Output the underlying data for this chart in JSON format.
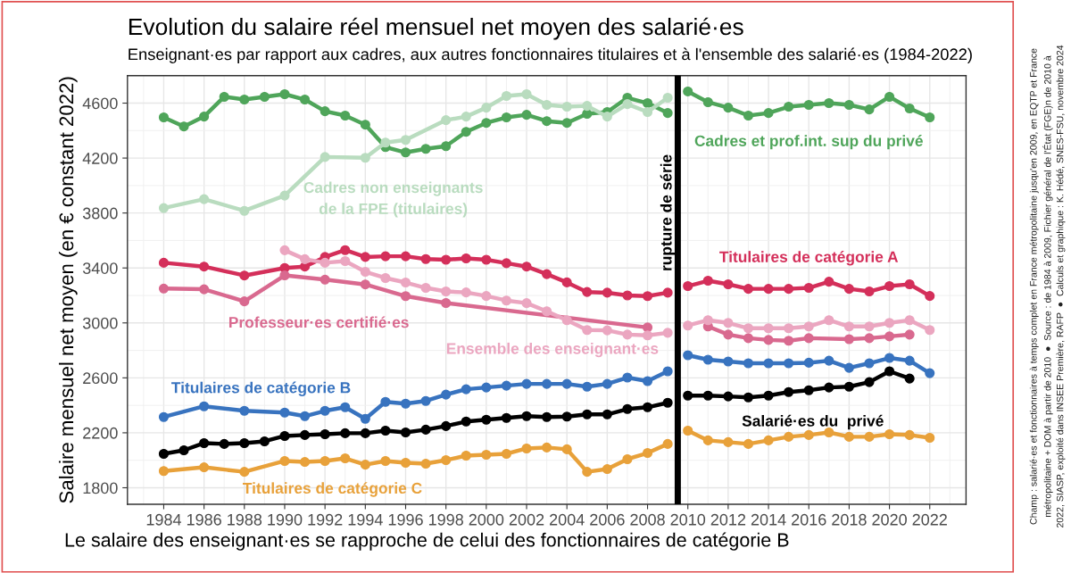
{
  "chart_data": {
    "type": "line",
    "title": "Evolution du salaire réel mensuel net moyen des salarié·es",
    "subtitle": "Enseignant·es par rapport aux cadres, aux autres fonctionnaires titulaires et à l'ensemble des salarié·es (1984-2022)",
    "ylabel": "Salaire mensuel net moyen (en € constant 2022)",
    "xlim": [
      1982.2,
      2023.8
    ],
    "ylim": [
      1680,
      4800
    ],
    "xticks": [
      1984,
      1986,
      1988,
      1990,
      1992,
      1994,
      1996,
      1998,
      2000,
      2002,
      2004,
      2006,
      2008,
      2010,
      2012,
      2014,
      2016,
      2018,
      2020,
      2022
    ],
    "yticks": [
      1800,
      2200,
      2600,
      3000,
      3400,
      3800,
      4200,
      4600
    ],
    "grid": true,
    "marker": "circle",
    "line_style": "solid",
    "legend": false,
    "ref_lines": [
      {
        "axis": "x",
        "value": 2009.5,
        "label": "rupture de série",
        "color": "#000000"
      }
    ],
    "series": [
      {
        "name": "Cadres et prof.int. sup du privé",
        "color": "#4fa55a",
        "x": [
          1984,
          1985,
          1986,
          1987,
          1988,
          1989,
          1990,
          1991,
          1992,
          1993,
          1994,
          1995,
          1996,
          1997,
          1998,
          1999,
          2000,
          2001,
          2002,
          2003,
          2004,
          2005,
          2006,
          2007,
          2008,
          2009,
          2009.5,
          2010,
          2011,
          2012,
          2013,
          2014,
          2015,
          2016,
          2017,
          2018,
          2019,
          2020,
          2021,
          2022
        ],
        "values": [
          4496,
          4430,
          4502,
          4646,
          4626,
          4646,
          4665,
          4626,
          4541,
          4509,
          4443,
          4280,
          4241,
          4267,
          4287,
          4391,
          4456,
          4496,
          4515,
          4469,
          4456,
          4522,
          4535,
          4639,
          4600,
          4528,
          null,
          4685,
          4607,
          4567,
          4509,
          4528,
          4574,
          4587,
          4600,
          4587,
          4554,
          4646,
          4561,
          4496
        ]
      },
      {
        "name": "Cadres non enseignants\nde la FPE (titulaires)",
        "color": "#b9dcbf",
        "x": [
          1984,
          1986,
          1988,
          1990,
          1992,
          1994,
          1995,
          1996,
          1998,
          1999,
          2000,
          2001,
          2002,
          2003,
          2004,
          2005,
          2006,
          2007,
          2008,
          2009
        ],
        "values": [
          3836,
          3901,
          3816,
          3927,
          4208,
          4202,
          4313,
          4332,
          4476,
          4502,
          4567,
          4652,
          4665,
          4587,
          4574,
          4580,
          4502,
          4593,
          4535,
          4639
        ]
      },
      {
        "name": "Titulaires de catégorie A",
        "color": "#d42f5a",
        "x": [
          1984,
          1986,
          1988,
          1990,
          1991,
          1992,
          1993,
          1994,
          1995,
          1996,
          1997,
          1998,
          1999,
          2000,
          2001,
          2002,
          2003,
          2004,
          2005,
          2006,
          2007,
          2008,
          2009,
          2009.5,
          2010,
          2011,
          2012,
          2013,
          2014,
          2015,
          2016,
          2017,
          2018,
          2019,
          2020,
          2021,
          2022
        ],
        "values": [
          3438,
          3410,
          3345,
          3400,
          3410,
          3480,
          3530,
          3480,
          3485,
          3485,
          3465,
          3460,
          3470,
          3460,
          3435,
          3410,
          3355,
          3295,
          3225,
          3220,
          3200,
          3195,
          3220,
          null,
          3268,
          3307,
          3281,
          3248,
          3248,
          3248,
          3255,
          3300,
          3248,
          3229,
          3268,
          3281,
          3196
        ]
      },
      {
        "name": "Professeur·es certifié·es",
        "color": "#d9698f",
        "x": [
          1984,
          1986,
          1988,
          1990,
          1992,
          1994,
          1996,
          1998,
          2008,
          2009.5,
          2011,
          2012,
          2013,
          2014,
          2015,
          2016,
          2018,
          2019,
          2020,
          2021
        ],
        "values": [
          3250,
          3245,
          3157,
          3346,
          3315,
          3280,
          3195,
          3145,
          2967,
          null,
          2974,
          2915,
          2889,
          2876,
          2870,
          2889,
          2882,
          2889,
          2902,
          2915
        ]
      },
      {
        "name": "Ensemble des enseignant·es",
        "color": "#eba6c0",
        "x": [
          1990,
          1991,
          1992,
          1993,
          1994,
          1995,
          1996,
          1997,
          1998,
          1999,
          2000,
          2001,
          2002,
          2003,
          2004,
          2005,
          2006,
          2007,
          2008,
          2009,
          2009.5,
          2010,
          2011,
          2012,
          2013,
          2014,
          2015,
          2016,
          2017,
          2018,
          2019,
          2020,
          2021,
          2022
        ],
        "values": [
          3529,
          3464,
          3438,
          3450,
          3372,
          3327,
          3294,
          3255,
          3229,
          3222,
          3196,
          3163,
          3144,
          3085,
          3020,
          2948,
          2946,
          2915,
          2909,
          2928,
          null,
          2981,
          3020,
          3000,
          2961,
          2961,
          2961,
          2974,
          3020,
          2974,
          2974,
          3000,
          3020,
          2948
        ]
      },
      {
        "name": "Titulaires de catégorie B",
        "color": "#3873bf",
        "x": [
          1984,
          1986,
          1988,
          1990,
          1991,
          1992,
          1993,
          1994,
          1995,
          1996,
          1997,
          1998,
          1999,
          2000,
          2001,
          2002,
          2003,
          2004,
          2005,
          2006,
          2007,
          2008,
          2009,
          2009.5,
          2010,
          2011,
          2012,
          2013,
          2014,
          2015,
          2016,
          2017,
          2018,
          2019,
          2020,
          2021,
          2022
        ],
        "values": [
          2315,
          2393,
          2360,
          2347,
          2321,
          2360,
          2386,
          2302,
          2425,
          2412,
          2432,
          2478,
          2517,
          2530,
          2543,
          2556,
          2556,
          2556,
          2536,
          2556,
          2602,
          2576,
          2648,
          null,
          2765,
          2732,
          2719,
          2706,
          2706,
          2706,
          2710,
          2725,
          2673,
          2706,
          2745,
          2725,
          2634
        ]
      },
      {
        "name": "Salarié·es du  privé",
        "color": "#000000",
        "x": [
          1984,
          1985,
          1986,
          1987,
          1988,
          1989,
          1990,
          1991,
          1992,
          1993,
          1994,
          1995,
          1996,
          1997,
          1998,
          1999,
          2000,
          2001,
          2002,
          2003,
          2004,
          2005,
          2006,
          2007,
          2008,
          2009,
          2009.5,
          2010,
          2011,
          2012,
          2013,
          2014,
          2015,
          2016,
          2017,
          2018,
          2019,
          2020,
          2021
        ],
        "values": [
          2047,
          2073,
          2125,
          2119,
          2125,
          2138,
          2177,
          2184,
          2190,
          2197,
          2197,
          2216,
          2203,
          2223,
          2249,
          2282,
          2295,
          2308,
          2321,
          2315,
          2318,
          2334,
          2334,
          2373,
          2386,
          2419,
          null,
          2471,
          2471,
          2465,
          2458,
          2471,
          2497,
          2510,
          2530,
          2536,
          2569,
          2648,
          2595
        ]
      },
      {
        "name": "Titulaires de catégorie C",
        "color": "#e8a13a",
        "x": [
          1984,
          1986,
          1988,
          1990,
          1991,
          1992,
          1993,
          1994,
          1995,
          1996,
          1997,
          1998,
          1999,
          2000,
          2001,
          2002,
          2003,
          2004,
          2005,
          2006,
          2007,
          2008,
          2009,
          2009.5,
          2010,
          2011,
          2012,
          2013,
          2014,
          2015,
          2016,
          2017,
          2018,
          2019,
          2020,
          2021,
          2022
        ],
        "values": [
          1922,
          1949,
          1916,
          1995,
          1988,
          1995,
          2014,
          1968,
          1995,
          1982,
          1975,
          2001,
          2034,
          2040,
          2047,
          2086,
          2093,
          2080,
          1916,
          1936,
          2008,
          2053,
          2119,
          null,
          2216,
          2145,
          2132,
          2119,
          2145,
          2171,
          2184,
          2203,
          2171,
          2171,
          2190,
          2184,
          2164
        ]
      }
    ],
    "annotations": [
      "Le salaire des enseignant·es se rapproche de celui des fonctionnaires de catégorie B",
      "Champ : salarié·es et fonctionnaires à temps complet en France métropolitaine jusqu'en 2009, en EQTP et France\nmétropolitaine + DOM à partir de 2010  ●  Source : de 1984 à 2009, Fichier général de l'État (FGE)n de 2010 à\n2022, SIASP, exploité dans INSEE Première, RAFP  ●  Calculs et graphique : K. Hédé, SNES-FSU, novembre 2024"
    ]
  }
}
